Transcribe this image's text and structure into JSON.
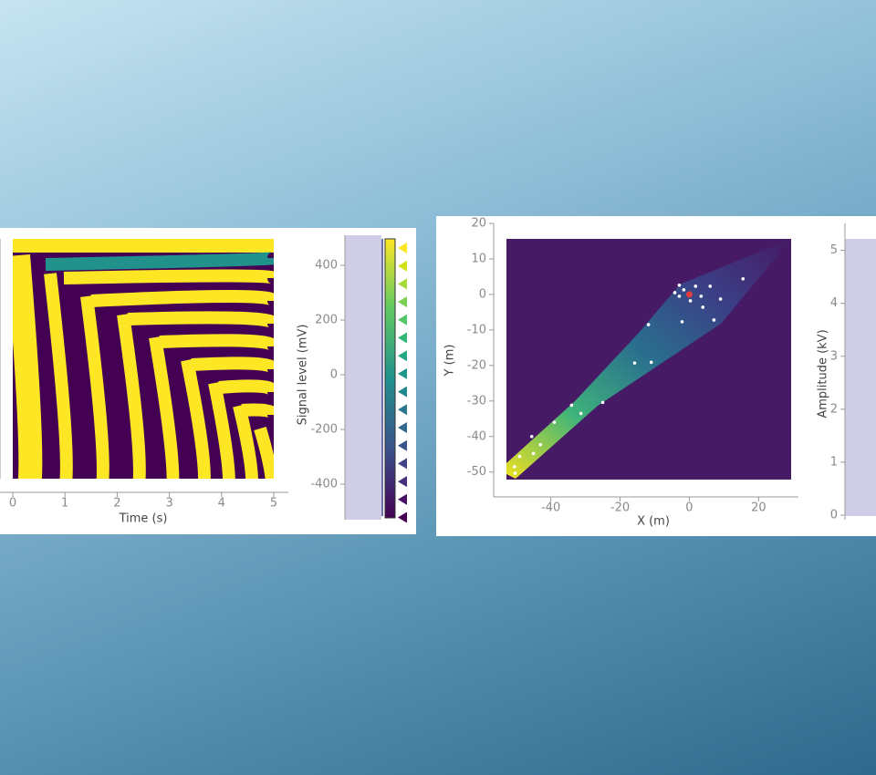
{
  "chart_data": [
    {
      "type": "heatmap",
      "x_label": "Time (s)",
      "xlim": [
        0,
        5
      ],
      "xticks": [
        0,
        1,
        2,
        3,
        4,
        5
      ],
      "colorbar_label": "Signal level (mV)",
      "colorbar_lim": [
        -530,
        510
      ],
      "colorbar_ticks": [
        -400,
        -200,
        0,
        200,
        400
      ]
    },
    {
      "type": "scatter",
      "x_label": "X (m)",
      "y_label": "Y (m)",
      "xlim": [
        -56.5,
        31.5
      ],
      "ylim": [
        -57,
        20
      ],
      "xticks": [
        -40,
        -20,
        0,
        20
      ],
      "yticks": [
        -50,
        -40,
        -30,
        -20,
        -10,
        0,
        10,
        20
      ],
      "series": [
        {
          "color": "#ffffff",
          "x": [
            -2.9,
            -4.2,
            -1.6,
            1.8,
            3.4,
            6,
            9,
            15.5,
            3.9,
            -2.1,
            7.1,
            -11.8,
            -15.8,
            -11,
            -25,
            -34,
            -31.3,
            -39,
            -45.5,
            -43,
            -45,
            -49,
            -50.5,
            -50.3,
            0.3,
            -2.9
          ],
          "values": [
            2.6,
            0.5,
            1.3,
            2.3,
            -0.5,
            2.3,
            -1.3,
            4.4,
            -3.6,
            -7.7,
            -7.2,
            -8.5,
            -19.3,
            -19.1,
            -30.4,
            -31.2,
            -33.5,
            -36,
            -40,
            -42.3,
            -44.8,
            -45.6,
            -48.5,
            -50.3,
            -1.8,
            -0.5
          ]
        },
        {
          "color": "#e03c3c",
          "x": [
            0
          ],
          "values": [
            0
          ]
        }
      ],
      "colorbar_label": "Amplitude (kV)",
      "colorbar_lim": [
        0,
        5.2
      ],
      "colorbar_ticks": [
        0,
        1,
        2,
        3,
        4,
        5
      ]
    }
  ]
}
